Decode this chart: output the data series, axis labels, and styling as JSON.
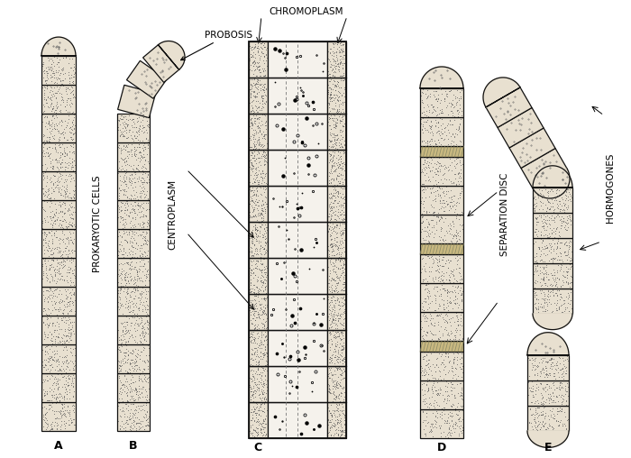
{
  "background_color": "#ffffff",
  "stipple_color": "#e8e0d0",
  "border_color": "#111111",
  "cell_fill": "#e8e0d0",
  "sep_disc_fill": "#c8b880",
  "labels": [
    "A",
    "B",
    "C",
    "D",
    "E"
  ],
  "label_probosis": "PROBOSIS",
  "label_prokaryotic": "PROKARYOTIC CELLS",
  "label_chromoplasm": "CHROMOPLASM",
  "label_centroplasm": "CENTROPLASM",
  "label_sep_disc": "SEPARATION DISC",
  "label_hormogones": "HORMOGONES",
  "figsize": [
    7.0,
    5.08
  ],
  "dpi": 100
}
